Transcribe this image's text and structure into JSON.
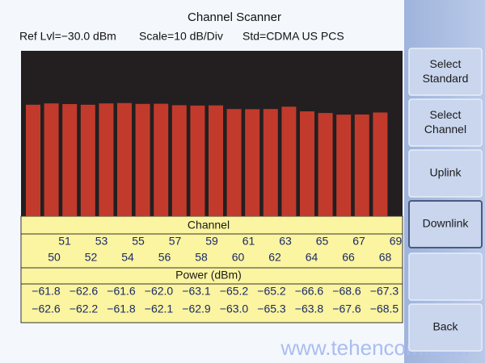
{
  "chart_data": {
    "type": "bar",
    "title": "Channel Scanner",
    "ref_level": "Ref Lvl=−30.0 dBm",
    "scale": "Scale=10 dB/Div",
    "standard": "Std=CDMA US PCS",
    "x_label": "Channel",
    "y_label": "Power (dBm)",
    "categories": [
      50,
      51,
      52,
      53,
      54,
      55,
      56,
      57,
      58,
      59,
      60,
      61,
      62,
      63,
      64,
      65,
      66,
      67,
      68,
      69
    ],
    "values": [
      -62.6,
      -61.8,
      -62.2,
      -62.6,
      -61.8,
      -61.6,
      -62.1,
      -62.0,
      -62.9,
      -63.1,
      -63.0,
      -65.2,
      -65.3,
      -65.2,
      -63.8,
      -66.6,
      -67.6,
      -68.6,
      -68.5,
      -67.3
    ],
    "value_labels": [
      "−62.6",
      "−61.8",
      "−62.2",
      "−62.6",
      "−61.8",
      "−61.6",
      "−62.1",
      "−62.0",
      "−62.9",
      "−63.1",
      "−63.0",
      "−65.2",
      "−65.3",
      "−65.2",
      "−63.8",
      "−66.6",
      "−67.6",
      "−68.6",
      "−68.5",
      "−67.3"
    ],
    "color": "#c23a2c",
    "ylim": [
      -130,
      -30
    ]
  },
  "softkeys": [
    "Select Standard",
    "Select Channel",
    "Uplink",
    "Downlink",
    "Back"
  ],
  "watermark": "www.tehencom.com"
}
